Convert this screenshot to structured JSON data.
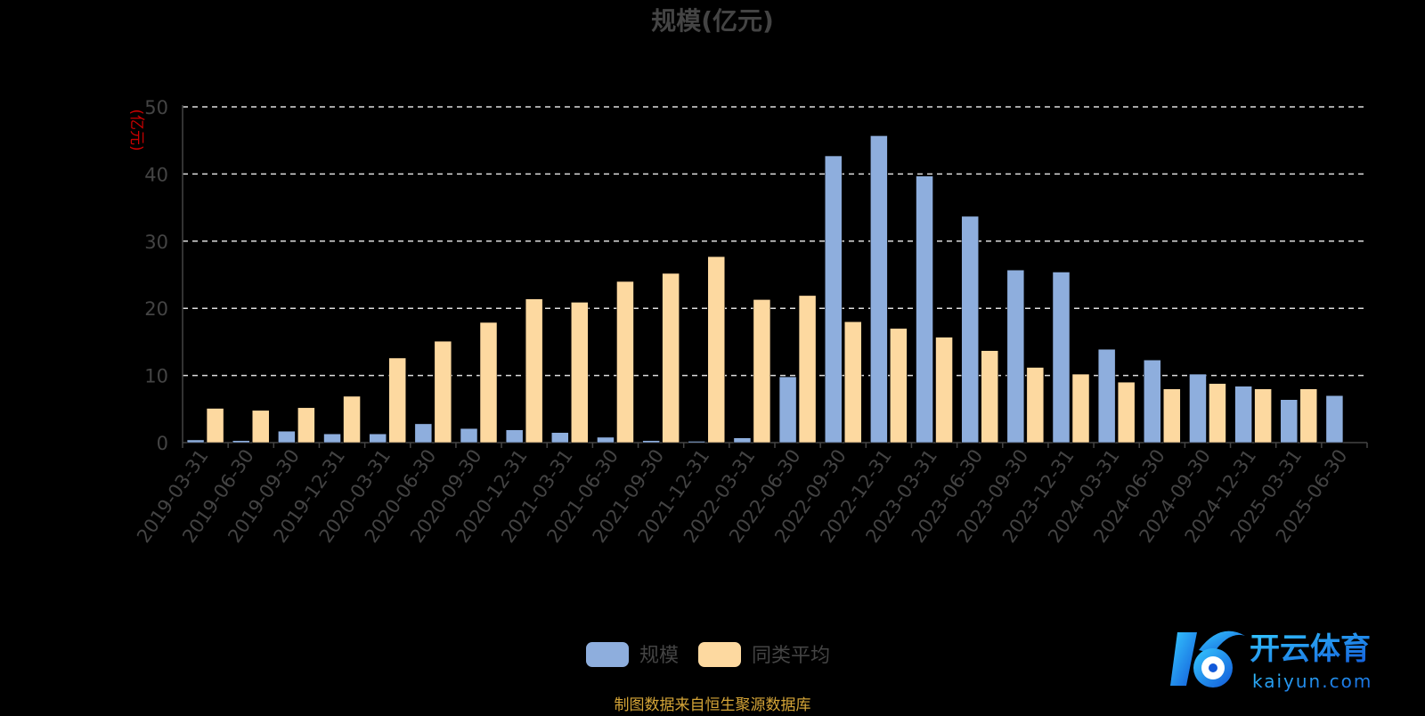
{
  "chart_data": {
    "type": "bar",
    "title": "规模(亿元)",
    "ylabel": "(亿元)",
    "ylim": [
      0,
      50
    ],
    "yticks": [
      0,
      10,
      20,
      30,
      40,
      50
    ],
    "grid": "dashed-horizontal",
    "categories": [
      "2019-03-31",
      "2019-06-30",
      "2019-09-30",
      "2019-12-31",
      "2020-03-31",
      "2020-06-30",
      "2020-09-30",
      "2020-12-31",
      "2021-03-31",
      "2021-06-30",
      "2021-09-30",
      "2021-12-31",
      "2022-03-31",
      "2022-06-30",
      "2022-09-30",
      "2022-12-31",
      "2023-03-31",
      "2023-06-30",
      "2023-09-30",
      "2023-12-31",
      "2024-03-31",
      "2024-06-30",
      "2024-09-30",
      "2024-12-31",
      "2025-03-31",
      "2025-06-30"
    ],
    "series": [
      {
        "name": "规模",
        "color": "#8EAEDD",
        "values": [
          0.4,
          0.3,
          1.7,
          1.3,
          1.3,
          2.8,
          2.1,
          1.9,
          1.5,
          0.8,
          0.3,
          0.2,
          0.7,
          9.8,
          42.7,
          45.7,
          39.7,
          33.7,
          25.7,
          25.4,
          13.9,
          12.3,
          10.2,
          8.4,
          6.4,
          7.0
        ]
      },
      {
        "name": "同类平均",
        "color": "#FDD9A0",
        "values": [
          5.1,
          4.8,
          5.2,
          6.9,
          12.6,
          15.1,
          17.9,
          21.4,
          20.9,
          24.0,
          25.2,
          27.7,
          21.3,
          21.9,
          18.0,
          17.0,
          15.7,
          13.7,
          11.2,
          10.2,
          9.0,
          8.0,
          8.8,
          8.0,
          8.0,
          null
        ]
      }
    ],
    "legend_position": "bottom-center"
  },
  "footer": {
    "source": "制图数据来自恒生聚源数据库"
  },
  "watermark": {
    "brand": "开云体育",
    "url": "kaiyun.com"
  },
  "colors": {
    "background": "#000000",
    "axis_text": "#444444",
    "grid": "#dddddd",
    "ylabel": "#cc0000",
    "source": "#d4a437"
  }
}
